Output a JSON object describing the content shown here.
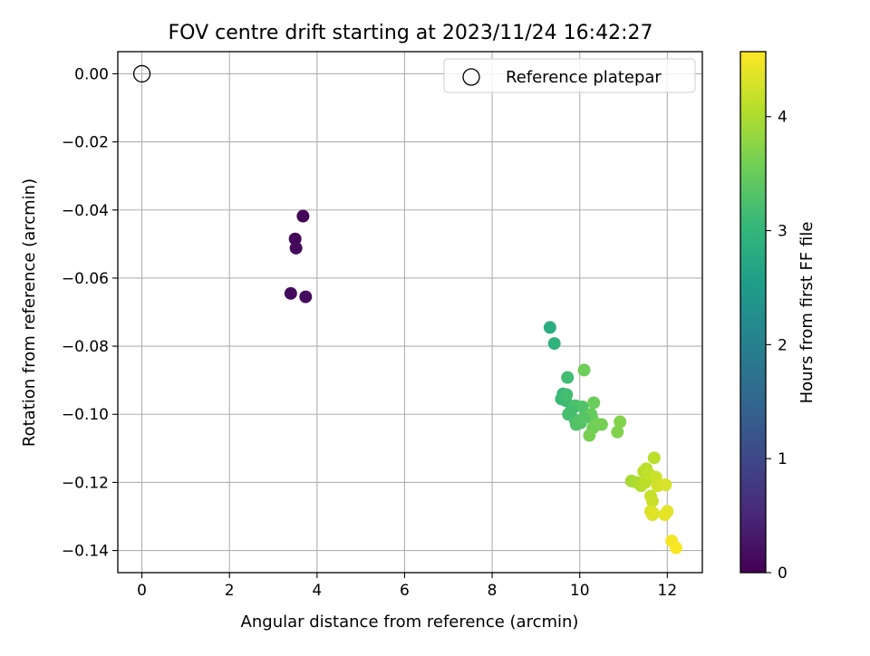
{
  "chart_data": {
    "type": "scatter",
    "title": "FOV centre drift starting at 2023/11/24 16:42:27",
    "xlabel": "Angular distance from reference (arcmin)",
    "ylabel": "Rotation from reference (arcmin)",
    "xlim": [
      -0.55,
      12.8
    ],
    "ylim": [
      -0.1465,
      0.0065
    ],
    "xticks": [
      0,
      2,
      4,
      6,
      8,
      10,
      12
    ],
    "xtick_labels": [
      "0",
      "2",
      "4",
      "6",
      "8",
      "10",
      "12"
    ],
    "yticks": [
      0.0,
      -0.02,
      -0.04,
      -0.06,
      -0.08,
      -0.1,
      -0.12,
      -0.14
    ],
    "ytick_labels": [
      "0.00",
      "−0.02",
      "−0.04",
      "−0.06",
      "−0.08",
      "−0.10",
      "−0.12",
      "−0.14"
    ],
    "grid": true,
    "legend": {
      "placement": "upper-right",
      "entries": [
        "Reference platepar"
      ]
    },
    "reference_point": {
      "x": 0.0,
      "y": 0.0,
      "marker": "open-circle"
    },
    "colorbar": {
      "label": "Hours from first FF file",
      "colormap": "viridis",
      "range": [
        0,
        4.57
      ],
      "ticks": [
        0,
        1,
        2,
        3,
        4
      ],
      "tick_labels": [
        "0",
        "1",
        "2",
        "3",
        "4"
      ]
    },
    "series": [
      {
        "x": [
          3.68,
          3.5,
          3.52,
          3.4,
          3.74,
          9.32,
          9.42,
          9.72,
          9.62,
          9.58,
          9.68,
          9.7,
          9.74,
          9.9,
          9.86,
          10.06,
          9.9,
          10.02,
          9.92,
          9.96,
          10.1,
          10.32,
          10.26,
          10.28,
          10.3,
          10.42,
          10.5,
          10.22,
          10.92,
          10.86,
          9.8,
          10.1,
          11.18,
          11.3,
          11.4,
          11.46,
          11.52,
          11.5,
          11.58,
          11.62,
          11.66,
          11.7,
          11.74,
          11.78,
          11.62,
          11.66,
          11.68,
          11.96,
          12.0,
          11.94,
          12.1,
          12.2
        ],
        "y": [
          -0.0418,
          -0.0485,
          -0.0512,
          -0.0645,
          -0.0655,
          -0.0745,
          -0.0792,
          -0.0892,
          -0.094,
          -0.0955,
          -0.096,
          -0.0942,
          -0.1,
          -0.0975,
          -0.098,
          -0.0978,
          -0.1018,
          -0.1025,
          -0.103,
          -0.1022,
          -0.087,
          -0.0966,
          -0.1,
          -0.1012,
          -0.104,
          -0.103,
          -0.103,
          -0.1062,
          -0.1022,
          -0.1052,
          -0.099,
          -0.101,
          -0.1196,
          -0.12,
          -0.121,
          -0.1168,
          -0.116,
          -0.12,
          -0.1175,
          -0.124,
          -0.1255,
          -0.1128,
          -0.1185,
          -0.121,
          -0.1285,
          -0.1295,
          -0.129,
          -0.1207,
          -0.1285,
          -0.1295,
          -0.1372,
          -0.1392
        ],
        "hours": [
          0.05,
          0.08,
          0.1,
          0.12,
          0.15,
          2.85,
          2.95,
          3.15,
          3.05,
          3.1,
          3.12,
          3.18,
          3.2,
          3.22,
          3.25,
          3.28,
          3.25,
          3.3,
          3.3,
          3.32,
          3.55,
          3.52,
          3.48,
          3.5,
          3.55,
          3.58,
          3.6,
          3.62,
          3.7,
          3.68,
          3.2,
          3.35,
          3.95,
          4.0,
          4.05,
          4.08,
          4.1,
          4.12,
          4.15,
          4.18,
          4.2,
          4.1,
          4.22,
          4.25,
          4.3,
          4.32,
          4.35,
          4.3,
          4.38,
          4.4,
          4.5,
          4.55
        ]
      }
    ]
  }
}
